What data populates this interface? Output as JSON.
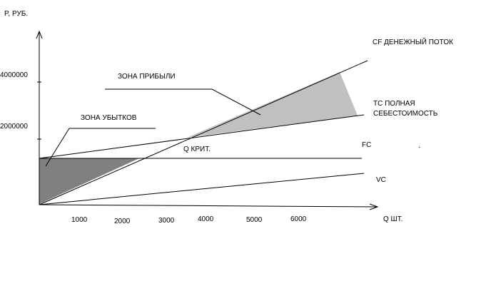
{
  "labels": {
    "y_axis": "P, РУБ.",
    "x_axis": "Q ШТ.",
    "profit_zone": "ЗОНА ПРИБЫЛИ",
    "loss_zone": "ЗОНА УБЫТКОВ",
    "q_crit": "Q КРИТ.",
    "cf": "CF ДЕНЕЖНЫЙ ПОТОК",
    "tc_line1": "TC ПОЛНАЯ",
    "tc_line2": "СЕБЕСТОИМОСТЬ",
    "fc": "FC",
    "vc": "VC",
    "dot": "."
  },
  "y_ticks": [
    "4000000",
    "2000000"
  ],
  "x_ticks": [
    "1000",
    "2000",
    "3000",
    "4000",
    "5000",
    "6000"
  ],
  "colors": {
    "loss_fill": "#808080",
    "profit_fill": "#c0c0c0",
    "line": "#000000"
  }
}
